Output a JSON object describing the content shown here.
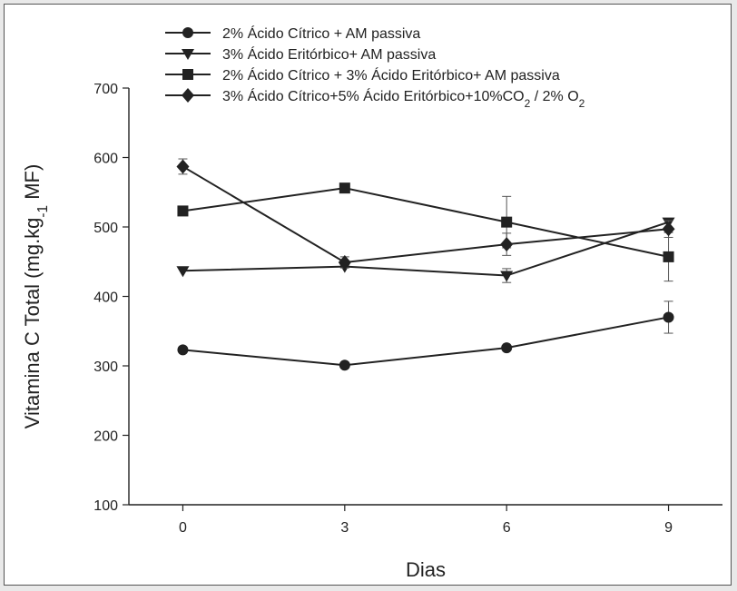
{
  "chart_data": {
    "type": "line",
    "title": "",
    "xlabel": "Dias",
    "ylabel_parts": [
      "Vitamina C Total (mg.kg",
      "-1",
      " MF)"
    ],
    "xlim": [
      -1,
      10
    ],
    "ylim": [
      100,
      700
    ],
    "x_ticks": [
      0,
      3,
      6,
      9
    ],
    "y_ticks": [
      100,
      200,
      300,
      400,
      500,
      600,
      700
    ],
    "grid": false,
    "legend_position": "top-left",
    "series": [
      {
        "name_parts": [
          "2% Ácido Cítrico + AM passiva"
        ],
        "marker": "circle",
        "x": [
          0,
          3,
          6,
          9
        ],
        "y": [
          323,
          301,
          326,
          370
        ],
        "err": [
          0,
          0,
          0,
          23
        ]
      },
      {
        "name_parts": [
          "3% Ácido Eritórbico+ AM passiva"
        ],
        "marker": "triangle-down",
        "x": [
          0,
          3,
          6,
          9
        ],
        "y": [
          437,
          443,
          430,
          507
        ],
        "err": [
          0,
          0,
          10,
          0
        ]
      },
      {
        "name_parts": [
          "2% Ácido Cítrico + 3% Ácido Eritórbico+ AM passiva"
        ],
        "marker": "square",
        "x": [
          0,
          3,
          6,
          9
        ],
        "y": [
          523,
          556,
          507,
          457
        ],
        "err": [
          0,
          0,
          37,
          35
        ]
      },
      {
        "name_parts": [
          "3% Ácido Cítrico+5% Ácido Eritórbico+10%CO",
          "2",
          " / 2% O",
          "2"
        ],
        "marker": "diamond",
        "x": [
          0,
          3,
          6,
          9
        ],
        "y": [
          587,
          449,
          475,
          497
        ],
        "err": [
          11,
          8,
          16,
          12
        ]
      }
    ],
    "colors": {
      "line": "#222222",
      "axis": "#222222"
    }
  }
}
